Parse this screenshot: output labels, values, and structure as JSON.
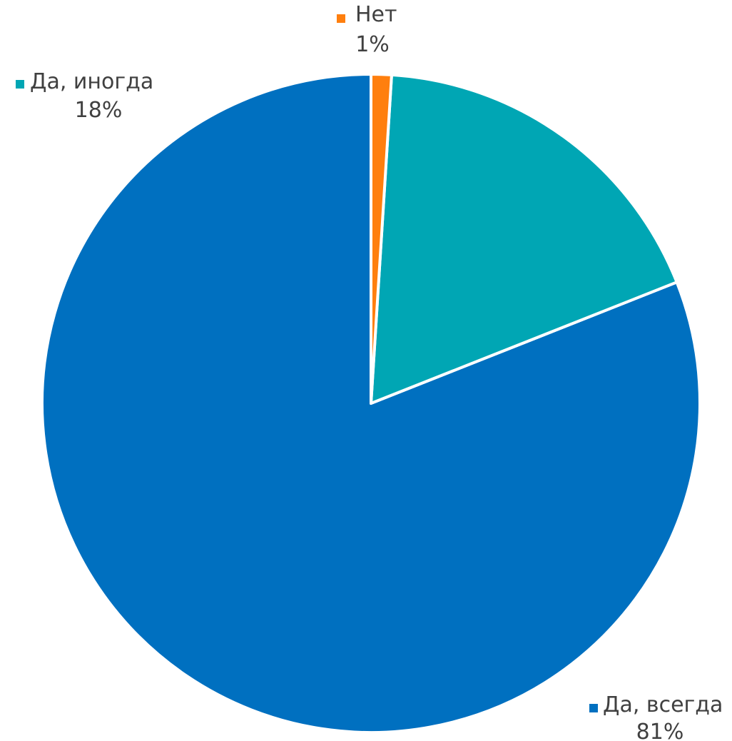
{
  "chart_data": {
    "type": "pie",
    "slices": [
      {
        "label": "Да, всегда",
        "value": 81,
        "value_label": "81%",
        "color": "#0070C0"
      },
      {
        "label": "Да, иногда",
        "value": 18,
        "value_label": "18%",
        "color": "#00A6B4"
      },
      {
        "label": "Нет",
        "value": 1,
        "value_label": "1%",
        "color": "#FF7F0E"
      }
    ],
    "start_angle_deg": 0,
    "direction": "counterclockwise",
    "slice_border_color": "#ffffff",
    "label_position": "outside",
    "legend_marker": "square"
  }
}
